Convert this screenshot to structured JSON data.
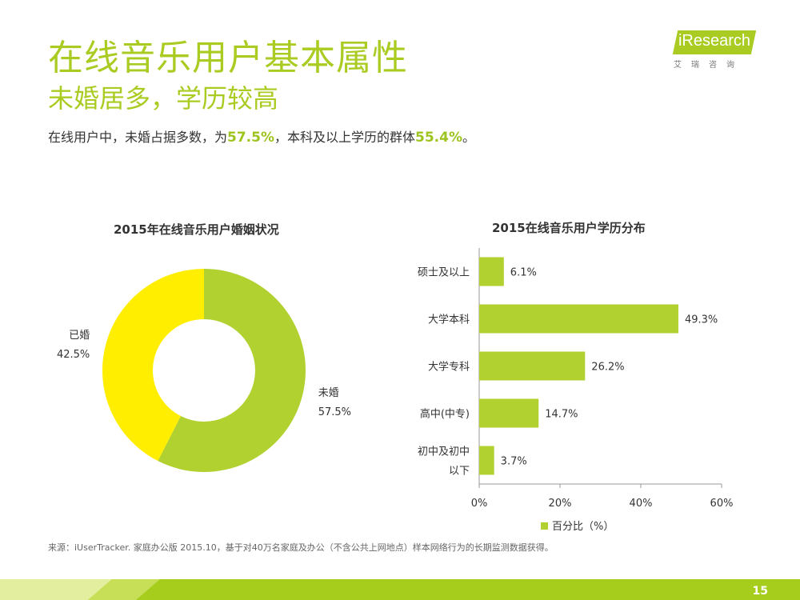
{
  "page": {
    "title": "在线音乐用户基本属性",
    "subtitle": "未婚居多，学历较高",
    "summary": {
      "part1": "在线用户中，未婚占据多数，为",
      "value1": "57.5%",
      "part2": "，本科及以上学历的群体",
      "value2": "55.4%",
      "part3": "。"
    },
    "logo": {
      "text": "iResearch",
      "cn": "艾瑞咨询"
    },
    "source": "来源：iUserTracker. 家庭办公版 2015.10，基于对40万名家庭及办公（不含公共上网地点）样本网络行为的长期监测数据获得。",
    "page_number": "15"
  },
  "colors": {
    "accent": "#aacc22",
    "green": "#b1d130",
    "yellow": "#ffee00",
    "footer_light": "#e3ef9e",
    "footer_dark": "#a6cc1c"
  },
  "chart_data": [
    {
      "type": "pie",
      "title": "2015年在线音乐用户婚姻状况",
      "donut": true,
      "categories": [
        "未婚",
        "已婚"
      ],
      "values": [
        57.5,
        42.5
      ],
      "value_labels": [
        "57.5%",
        "42.5%"
      ],
      "colors": [
        "#b1d130",
        "#ffee00"
      ]
    },
    {
      "type": "bar",
      "orientation": "horizontal",
      "title": "2015在线音乐用户学历分布",
      "categories": [
        "硕士及以上",
        "大学本科",
        "大学专科",
        "高中(中专)",
        "初中及初中以下"
      ],
      "category_lines": [
        [
          "硕士及以上"
        ],
        [
          "大学本科"
        ],
        [
          "大学专科"
        ],
        [
          "高中(中专)"
        ],
        [
          "初中及初中",
          "以下"
        ]
      ],
      "values": [
        6.1,
        49.3,
        26.2,
        14.7,
        3.7
      ],
      "value_labels": [
        "6.1%",
        "49.3%",
        "26.2%",
        "14.7%",
        "3.7%"
      ],
      "xlim": [
        0,
        60
      ],
      "xticks": [
        0,
        20,
        40,
        60
      ],
      "xtick_labels": [
        "0%",
        "20%",
        "40%",
        "60%"
      ],
      "legend": "百分比（%）",
      "legend_position": "bottom",
      "color": "#b1d130",
      "grid": false
    }
  ]
}
